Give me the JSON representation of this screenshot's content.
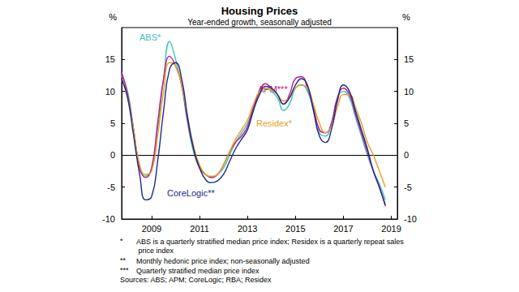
{
  "chart_data": {
    "type": "line",
    "title": "Housing Prices",
    "subtitle": "Year-ended growth, seasonally adjusted",
    "y_label": "%",
    "xlim": [
      2007.75,
      2019.25
    ],
    "xticks": [
      2009,
      2011,
      2013,
      2015,
      2017,
      2019
    ],
    "ylim": [
      -10,
      20
    ],
    "yticks": [
      -10,
      -5,
      0,
      5,
      10,
      15
    ],
    "grid": false,
    "x": [
      2007.75,
      2008,
      2008.25,
      2008.5,
      2008.75,
      2009,
      2009.25,
      2009.5,
      2009.75,
      2010,
      2010.25,
      2010.5,
      2010.75,
      2011,
      2011.25,
      2011.5,
      2011.75,
      2012,
      2012.25,
      2012.5,
      2012.75,
      2013,
      2013.25,
      2013.5,
      2013.75,
      2014,
      2014.25,
      2014.5,
      2014.75,
      2015,
      2015.25,
      2015.5,
      2015.75,
      2016,
      2016.25,
      2016.5,
      2016.75,
      2017,
      2017.25,
      2017.5,
      2017.75,
      2018,
      2018.25,
      2018.5,
      2018.75
    ],
    "series": [
      {
        "name": "ABS*",
        "color": "#3cc4bc",
        "values": [
          12.5,
          10,
          4,
          -2,
          -3.3,
          -2,
          4,
          12,
          17.8,
          15,
          11,
          5,
          0.5,
          -2,
          -3,
          -3.5,
          -3,
          -2,
          0,
          2,
          3.5,
          5,
          7.5,
          9.5,
          10.5,
          10,
          9,
          7,
          8,
          10.5,
          11,
          10,
          7,
          3.5,
          3,
          5,
          9,
          10,
          9,
          6,
          3,
          0,
          -2.5,
          -4.5,
          -7
        ]
      },
      {
        "name": "APM***",
        "color": "#c0168c",
        "values": [
          13,
          9.5,
          4,
          -2,
          -3.5,
          -2,
          5,
          12,
          15.5,
          14,
          11,
          5.5,
          1,
          -2,
          -3,
          -3.5,
          -3,
          -1.5,
          0.5,
          2,
          3,
          4.5,
          7.5,
          10,
          11.2,
          10.5,
          9.5,
          8,
          9.5,
          12,
          12.3,
          10.5,
          7.5,
          4,
          3.5,
          5,
          9,
          10.5,
          9.5,
          6.5,
          3.5,
          0.5,
          -2.5,
          -5,
          -8
        ]
      },
      {
        "name": "Residex*",
        "color": "#e8a020",
        "values": [
          12,
          9,
          4,
          -1.5,
          -3,
          -2.5,
          3,
          10,
          14.5,
          14,
          11,
          6,
          1.5,
          -1.5,
          -3,
          -3.3,
          -3,
          -1.5,
          0.5,
          2.5,
          4,
          5.5,
          8,
          10,
          10.5,
          10.2,
          9.5,
          8.5,
          9,
          10.5,
          11,
          10.5,
          8,
          5,
          3.5,
          4.5,
          7.5,
          9.5,
          9.5,
          7.5,
          5,
          2,
          0,
          -2.5,
          -5
        ]
      },
      {
        "name": "CoreLogic**",
        "color": "#1a2a8c",
        "values": [
          12,
          9,
          3,
          -3,
          -7,
          -6.5,
          -1,
          7,
          13.5,
          14.5,
          12,
          6,
          1,
          -2,
          -3.8,
          -4.3,
          -4,
          -3,
          -1,
          1,
          2.5,
          4,
          7,
          9.5,
          10.8,
          10.5,
          9.5,
          8,
          9,
          11,
          12,
          11,
          7,
          3,
          2,
          4,
          8.5,
          11,
          10,
          7,
          4,
          1,
          -2.5,
          -5,
          -7.8
        ]
      }
    ],
    "footnotes": [
      {
        "marker": "*",
        "text": "ABS is a quarterly stratified median price index; Residex is a quarterly repeat sales price index"
      },
      {
        "marker": "**",
        "text": "Monthly hedonic price index; non-seasonally adjusted"
      },
      {
        "marker": "***",
        "text": "Quarterly stratified median price index"
      }
    ],
    "sources": "Sources: ABS; APM; CoreLogic; RBA; Residex"
  }
}
